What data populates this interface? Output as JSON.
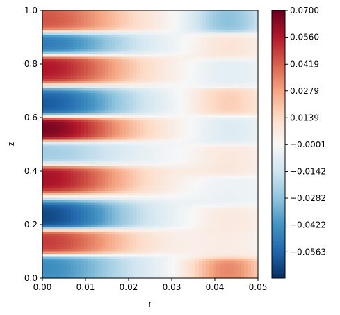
{
  "chart_data": {
    "type": "heatmap",
    "title": "",
    "xlabel": "r",
    "ylabel": "z",
    "xlim": [
      0.0,
      0.05
    ],
    "ylim": [
      0.0,
      1.0
    ],
    "x_ticks": [
      "0.00",
      "0.01",
      "0.02",
      "0.03",
      "0.04",
      "0.05"
    ],
    "y_ticks": [
      "0.0",
      "0.2",
      "0.4",
      "0.6",
      "0.8",
      "1.0"
    ],
    "colormap": "RdBu_r",
    "colorbar": {
      "vmin": -0.07,
      "vmax": 0.07,
      "ticks": [
        "0.0700",
        "0.0560",
        "0.0419",
        "0.0279",
        "0.0139",
        "−0.0001",
        "−0.0142",
        "−0.0282",
        "−0.0422",
        "−0.0563"
      ],
      "tick_values": [
        0.07,
        0.056,
        0.0419,
        0.0279,
        0.0139,
        -0.0001,
        -0.0142,
        -0.0282,
        -0.0422,
        -0.0563
      ]
    },
    "inner_region_bands": [
      {
        "z": 0.035,
        "value": -0.045
      },
      {
        "z": 0.14,
        "value": 0.05
      },
      {
        "z": 0.225,
        "value": -0.065
      },
      {
        "z": 0.38,
        "value": 0.06
      },
      {
        "z": 0.46,
        "value": -0.025
      },
      {
        "z": 0.565,
        "value": 0.068
      },
      {
        "z": 0.645,
        "value": -0.06
      },
      {
        "z": 0.79,
        "value": 0.058
      },
      {
        "z": 0.875,
        "value": -0.05
      },
      {
        "z": 0.962,
        "value": 0.045
      }
    ],
    "outer_region_bands": [
      {
        "z": 0.03,
        "value": 0.035
      },
      {
        "z": 0.12,
        "value": 0.005
      },
      {
        "z": 0.22,
        "value": 0.008
      },
      {
        "z": 0.32,
        "value": -0.005
      },
      {
        "z": 0.44,
        "value": 0.008
      },
      {
        "z": 0.56,
        "value": -0.01
      },
      {
        "z": 0.655,
        "value": 0.018
      },
      {
        "z": 0.77,
        "value": -0.008
      },
      {
        "z": 0.87,
        "value": 0.01
      },
      {
        "z": 0.962,
        "value": -0.03
      }
    ]
  }
}
